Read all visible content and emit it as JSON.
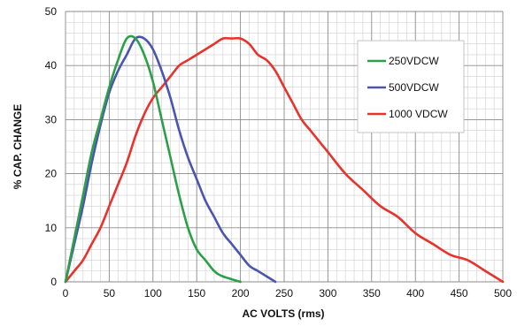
{
  "chart_data": {
    "type": "line",
    "xlabel": "AC VOLTS (rms)",
    "ylabel": "% CAP. CHANGE",
    "xlim": [
      0,
      500
    ],
    "ylim": [
      0,
      50
    ],
    "x_ticks": [
      0,
      50,
      100,
      150,
      200,
      250,
      300,
      350,
      400,
      450,
      500
    ],
    "y_ticks": [
      0,
      10,
      20,
      30,
      40,
      50
    ],
    "x_minor_step": 10,
    "y_minor_step": 2,
    "grid": true,
    "legend_position": "right",
    "series": [
      {
        "name": "250VDCW",
        "color": "#2ca048",
        "points": [
          [
            0,
            0
          ],
          [
            10,
            8
          ],
          [
            20,
            16
          ],
          [
            30,
            24
          ],
          [
            40,
            30
          ],
          [
            50,
            36
          ],
          [
            60,
            41
          ],
          [
            70,
            45
          ],
          [
            80,
            45
          ],
          [
            90,
            42
          ],
          [
            100,
            37
          ],
          [
            110,
            30
          ],
          [
            120,
            23
          ],
          [
            130,
            16
          ],
          [
            140,
            10
          ],
          [
            150,
            6
          ],
          [
            160,
            4
          ],
          [
            170,
            2
          ],
          [
            180,
            1
          ],
          [
            200,
            0
          ]
        ]
      },
      {
        "name": "500VDCW",
        "color": "#4a55b0",
        "points": [
          [
            0,
            0
          ],
          [
            10,
            7
          ],
          [
            20,
            14
          ],
          [
            30,
            22
          ],
          [
            40,
            29
          ],
          [
            50,
            35
          ],
          [
            60,
            39
          ],
          [
            70,
            42
          ],
          [
            80,
            45
          ],
          [
            90,
            45
          ],
          [
            100,
            43
          ],
          [
            110,
            39
          ],
          [
            120,
            34
          ],
          [
            130,
            28
          ],
          [
            140,
            23
          ],
          [
            150,
            19
          ],
          [
            160,
            15
          ],
          [
            170,
            12
          ],
          [
            180,
            9
          ],
          [
            190,
            7
          ],
          [
            200,
            5
          ],
          [
            210,
            3
          ],
          [
            220,
            2
          ],
          [
            230,
            1
          ],
          [
            240,
            0
          ]
        ]
      },
      {
        "name": "1000 VDCW",
        "color": "#e8322b",
        "points": [
          [
            0,
            0
          ],
          [
            10,
            2
          ],
          [
            20,
            4
          ],
          [
            30,
            7
          ],
          [
            40,
            10
          ],
          [
            50,
            14
          ],
          [
            60,
            18
          ],
          [
            70,
            22
          ],
          [
            80,
            27
          ],
          [
            90,
            31
          ],
          [
            100,
            34
          ],
          [
            110,
            36
          ],
          [
            120,
            38
          ],
          [
            130,
            40
          ],
          [
            140,
            41
          ],
          [
            150,
            42
          ],
          [
            160,
            43
          ],
          [
            170,
            44
          ],
          [
            180,
            45
          ],
          [
            190,
            45
          ],
          [
            200,
            45
          ],
          [
            210,
            44
          ],
          [
            220,
            42
          ],
          [
            230,
            41
          ],
          [
            240,
            39
          ],
          [
            250,
            36
          ],
          [
            260,
            33
          ],
          [
            270,
            30
          ],
          [
            280,
            28
          ],
          [
            290,
            26
          ],
          [
            300,
            24
          ],
          [
            320,
            20
          ],
          [
            340,
            17
          ],
          [
            360,
            14
          ],
          [
            380,
            12
          ],
          [
            400,
            9
          ],
          [
            420,
            7
          ],
          [
            440,
            5
          ],
          [
            460,
            4
          ],
          [
            480,
            2
          ],
          [
            500,
            0
          ]
        ]
      }
    ]
  }
}
